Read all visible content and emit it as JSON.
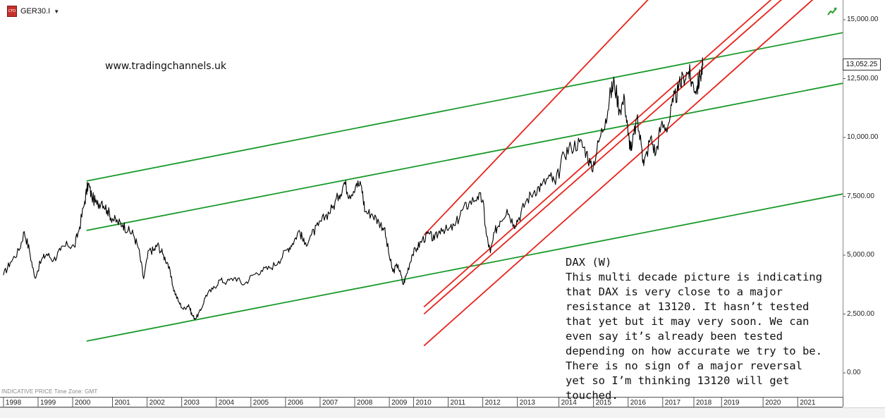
{
  "header": {
    "symbol": "GER30.I",
    "flag_text": "CFD",
    "caret": "▼",
    "trend_icon": "trend-up-icon"
  },
  "watermark": "www.tradingchannels.uk",
  "note": {
    "title": "DAX (W)",
    "body": "This multi decade picture is indicating that DAX is very close to a major resistance at 13120. It hasn’t tested that yet but it may very soon. We can even say it’s already been tested depending on how accurate we try to be. There is no sign of a major reversal yet so I’m thinking 13120 will get touched."
  },
  "footer": {
    "indicative": "INDICATIVE PRICE    Time Zone: GMT"
  },
  "colors": {
    "price": "#000000",
    "green_channel": "#1a9a2a",
    "red_channel": "#e8231c",
    "grid": "#e6e6e6"
  },
  "chart_data": {
    "type": "line",
    "title": "",
    "xlabel": "",
    "ylabel": "",
    "last_price_label": "13,052.25",
    "y_ticks": [
      "0.00",
      "2,500.00",
      "5,000.00",
      "7,500.00",
      "10,000.00",
      "12,500.00",
      "15,000.00"
    ],
    "y_tick_values": [
      0,
      2500,
      5000,
      7500,
      10000,
      12500,
      15000
    ],
    "ylim": [
      -1000,
      15500
    ],
    "xlim": [
      1997.55,
      2021.9
    ],
    "x_ticks": [
      "1998",
      "1999",
      "2000",
      "2001",
      "2002",
      "2003",
      "2004",
      "2005",
      "2006",
      "2007",
      "2008",
      "2009",
      "2010",
      "2011",
      "2012",
      "2013",
      "2014",
      "2015",
      "2016",
      "2017",
      "2018",
      "2019",
      "2020",
      "2021"
    ],
    "x_tick_values": [
      1997.65,
      1998.65,
      1999.65,
      2000.8,
      2001.8,
      2002.8,
      2003.8,
      2004.8,
      2005.8,
      2006.8,
      2007.8,
      2008.8,
      2009.5,
      2010.5,
      2011.5,
      2012.5,
      2013.7,
      2014.7,
      2015.7,
      2016.7,
      2017.6,
      2018.4,
      2019.6,
      2020.6
    ],
    "series": [
      {
        "values": [
          [
            1997.65,
            4150
          ],
          [
            1997.85,
            4700
          ],
          [
            1998.1,
            5200
          ],
          [
            1998.25,
            6000
          ],
          [
            1998.4,
            5200
          ],
          [
            1998.55,
            4050
          ],
          [
            1998.75,
            4800
          ],
          [
            1998.9,
            5050
          ],
          [
            1999.1,
            4800
          ],
          [
            1999.3,
            5200
          ],
          [
            1999.5,
            5450
          ],
          [
            1999.7,
            5350
          ],
          [
            1999.85,
            6200
          ],
          [
            2000.0,
            7300
          ],
          [
            2000.1,
            8050
          ],
          [
            2000.2,
            7500
          ],
          [
            2000.35,
            7150
          ],
          [
            2000.5,
            7300
          ],
          [
            2000.65,
            6900
          ],
          [
            2000.8,
            6550
          ],
          [
            2000.95,
            6400
          ],
          [
            2001.1,
            6300
          ],
          [
            2001.25,
            6050
          ],
          [
            2001.4,
            5900
          ],
          [
            2001.55,
            5300
          ],
          [
            2001.7,
            4000
          ],
          [
            2001.85,
            5200
          ],
          [
            2002.0,
            5200
          ],
          [
            2002.1,
            5450
          ],
          [
            2002.25,
            5050
          ],
          [
            2002.4,
            4650
          ],
          [
            2002.55,
            3650
          ],
          [
            2002.7,
            3050
          ],
          [
            2002.85,
            2700
          ],
          [
            2003.0,
            2900
          ],
          [
            2003.1,
            2450
          ],
          [
            2003.2,
            2300
          ],
          [
            2003.35,
            2650
          ],
          [
            2003.5,
            3300
          ],
          [
            2003.7,
            3550
          ],
          [
            2003.9,
            3950
          ],
          [
            2004.1,
            3850
          ],
          [
            2004.35,
            4050
          ],
          [
            2004.6,
            3750
          ],
          [
            2004.85,
            4150
          ],
          [
            2005.1,
            4350
          ],
          [
            2005.35,
            4450
          ],
          [
            2005.6,
            4750
          ],
          [
            2005.85,
            5250
          ],
          [
            2006.0,
            5500
          ],
          [
            2006.2,
            6050
          ],
          [
            2006.35,
            5450
          ],
          [
            2006.55,
            5850
          ],
          [
            2006.75,
            6250
          ],
          [
            2006.95,
            6650
          ],
          [
            2007.15,
            7000
          ],
          [
            2007.35,
            7550
          ],
          [
            2007.5,
            8100
          ],
          [
            2007.65,
            7550
          ],
          [
            2007.85,
            8050
          ],
          [
            2008.0,
            7900
          ],
          [
            2008.1,
            6850
          ],
          [
            2008.3,
            6750
          ],
          [
            2008.5,
            6400
          ],
          [
            2008.65,
            6150
          ],
          [
            2008.8,
            4950
          ],
          [
            2008.9,
            4300
          ],
          [
            2009.05,
            4600
          ],
          [
            2009.2,
            3750
          ],
          [
            2009.3,
            4200
          ],
          [
            2009.45,
            5000
          ],
          [
            2009.6,
            5300
          ],
          [
            2009.75,
            5650
          ],
          [
            2009.95,
            5900
          ],
          [
            2010.1,
            5650
          ],
          [
            2010.3,
            6150
          ],
          [
            2010.5,
            6050
          ],
          [
            2010.7,
            6250
          ],
          [
            2010.9,
            6900
          ],
          [
            2011.1,
            7200
          ],
          [
            2011.35,
            7500
          ],
          [
            2011.5,
            7350
          ],
          [
            2011.6,
            5900
          ],
          [
            2011.72,
            5100
          ],
          [
            2011.85,
            6000
          ],
          [
            2012.0,
            6450
          ],
          [
            2012.2,
            6950
          ],
          [
            2012.4,
            6300
          ],
          [
            2012.55,
            6600
          ],
          [
            2012.75,
            7300
          ],
          [
            2013.0,
            7750
          ],
          [
            2013.2,
            7950
          ],
          [
            2013.45,
            8350
          ],
          [
            2013.6,
            8000
          ],
          [
            2013.85,
            9300
          ],
          [
            2014.05,
            9600
          ],
          [
            2014.3,
            9800
          ],
          [
            2014.5,
            9400
          ],
          [
            2014.65,
            8600
          ],
          [
            2014.85,
            9800
          ],
          [
            2015.05,
            10800
          ],
          [
            2015.2,
            11900
          ],
          [
            2015.3,
            12350
          ],
          [
            2015.45,
            11200
          ],
          [
            2015.6,
            11600
          ],
          [
            2015.7,
            10100
          ],
          [
            2015.8,
            9450
          ],
          [
            2015.95,
            10800
          ],
          [
            2016.1,
            9500
          ],
          [
            2016.15,
            8800
          ],
          [
            2016.35,
            10000
          ],
          [
            2016.5,
            9300
          ],
          [
            2016.65,
            10500
          ],
          [
            2016.85,
            10500
          ],
          [
            2017.0,
            11500
          ],
          [
            2017.15,
            12000
          ],
          [
            2017.3,
            12600
          ],
          [
            2017.45,
            12800
          ],
          [
            2017.55,
            12300
          ],
          [
            2017.68,
            12050
          ],
          [
            2017.78,
            12600
          ],
          [
            2017.86,
            13052.25
          ]
        ]
      }
    ],
    "channels": [
      {
        "group": "green",
        "points": [
          [
            2000.05,
            8150
          ],
          [
            2021.9,
            14450
          ]
        ]
      },
      {
        "group": "green",
        "points": [
          [
            2000.05,
            6050
          ],
          [
            2021.9,
            12300
          ]
        ]
      },
      {
        "group": "green",
        "points": [
          [
            2000.05,
            1350
          ],
          [
            2021.9,
            7600
          ]
        ]
      },
      {
        "group": "red",
        "points": [
          [
            2009.8,
            5850
          ],
          [
            2016.5,
            16200
          ]
        ]
      },
      {
        "group": "red",
        "points": [
          [
            2009.8,
            2800
          ],
          [
            2020.1,
            16200
          ]
        ]
      },
      {
        "group": "red",
        "points": [
          [
            2009.8,
            2500
          ],
          [
            2020.4,
            16200
          ]
        ]
      },
      {
        "group": "red",
        "points": [
          [
            2009.8,
            1150
          ],
          [
            2021.3,
            16200
          ]
        ]
      }
    ]
  }
}
